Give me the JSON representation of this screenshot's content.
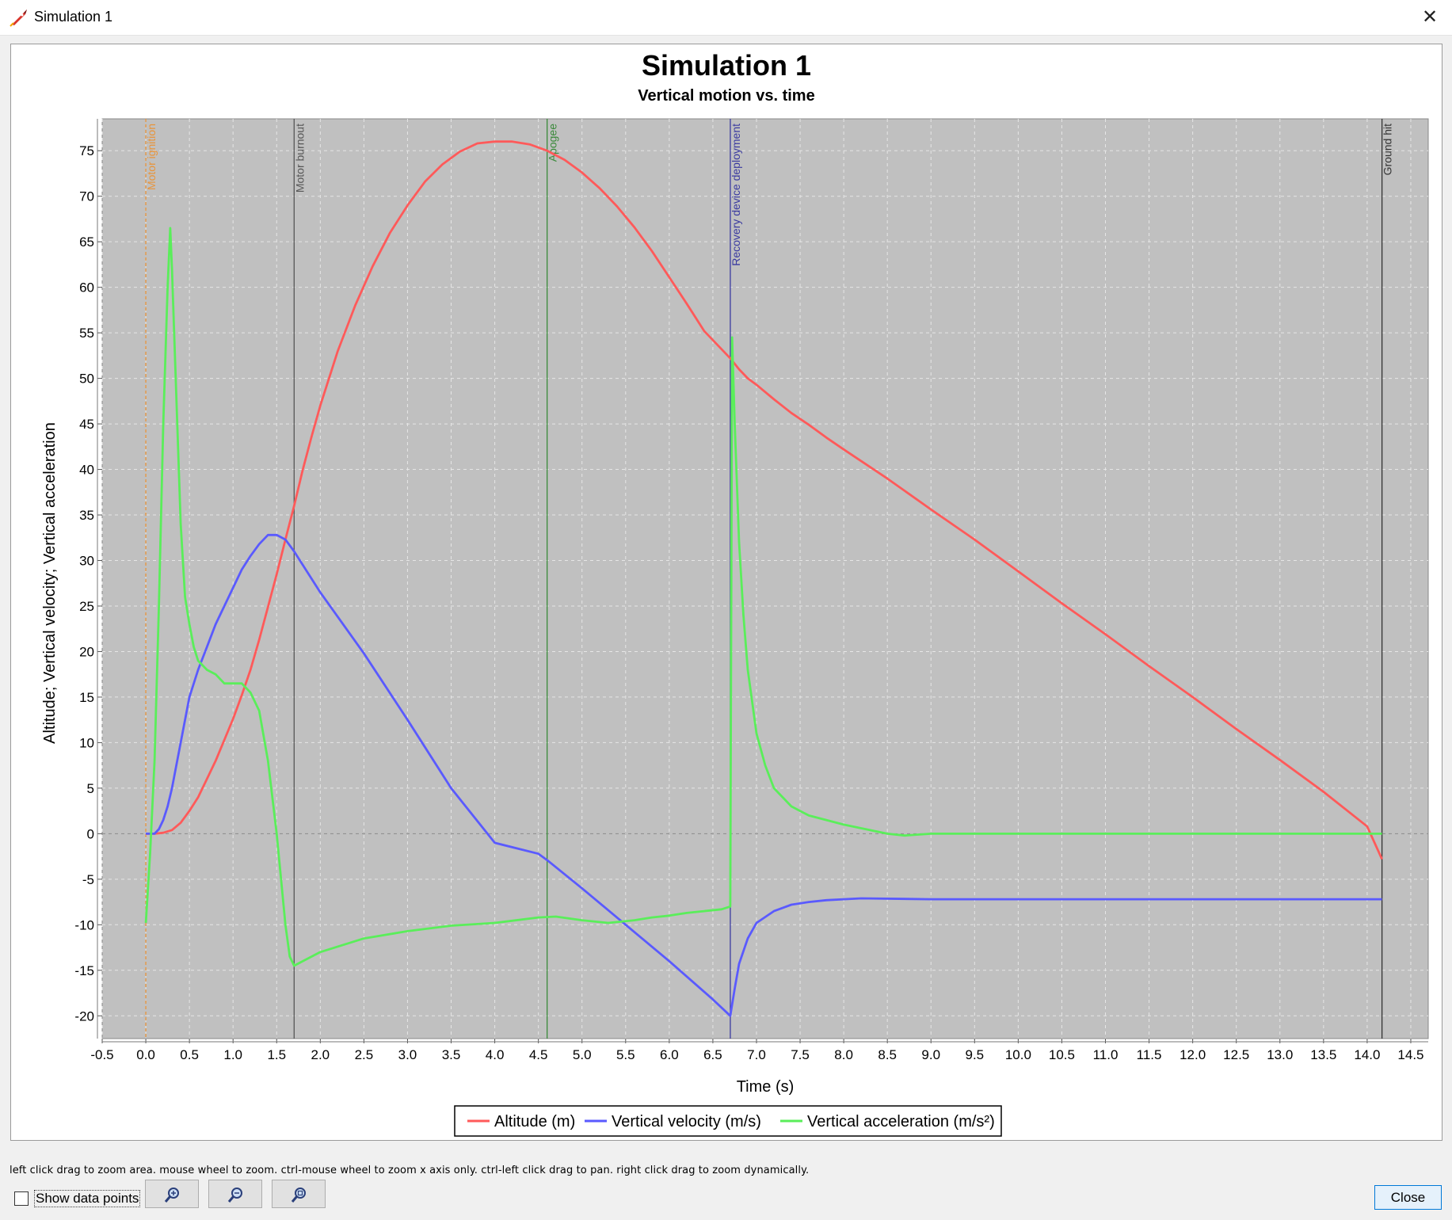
{
  "window": {
    "title": "Simulation 1",
    "close_glyph": "✕",
    "icon": "rocket-icon"
  },
  "chart_data": {
    "type": "line",
    "title": "Simulation 1",
    "subtitle": "Vertical motion vs. time",
    "xlabel": "Time (s)",
    "ylabel": "Altitude; Vertical velocity; Vertical acceleration",
    "xlim": [
      -0.5,
      14.7
    ],
    "ylim": [
      -22.5,
      78.5
    ],
    "xticks": [
      -0.5,
      0.0,
      0.5,
      1.0,
      1.5,
      2.0,
      2.5,
      3.0,
      3.5,
      4.0,
      4.5,
      5.0,
      5.5,
      6.0,
      6.5,
      7.0,
      7.5,
      8.0,
      8.5,
      9.0,
      9.5,
      10.0,
      10.5,
      11.0,
      11.5,
      12.0,
      12.5,
      13.0,
      13.5,
      14.0,
      14.5
    ],
    "yticks": [
      -20,
      -15,
      -10,
      -5,
      0,
      5,
      10,
      15,
      20,
      25,
      30,
      35,
      40,
      45,
      50,
      55,
      60,
      65,
      70,
      75
    ],
    "grid": true,
    "legend_position": "bottom",
    "plot_background": "#c0c0c0",
    "events": [
      {
        "name": "Motor ignition",
        "x": 0.0,
        "color": "#e8943a",
        "dashed": true
      },
      {
        "name": "Motor burnout",
        "x": 1.7,
        "color": "#555555",
        "dashed": false
      },
      {
        "name": "Apogee",
        "x": 4.6,
        "color": "#3a8a3a",
        "dashed": false
      },
      {
        "name": "Recovery device deployment",
        "x": 6.7,
        "color": "#3a3aa0",
        "dashed": false
      },
      {
        "name": "Ground hit",
        "x": 14.17,
        "color": "#333333",
        "dashed": false
      }
    ],
    "series": [
      {
        "name": "Altitude (m)",
        "color": "#ff5a5a",
        "x": [
          0,
          0.1,
          0.2,
          0.3,
          0.4,
          0.5,
          0.6,
          0.7,
          0.8,
          0.9,
          1.0,
          1.1,
          1.2,
          1.3,
          1.4,
          1.5,
          1.6,
          1.7,
          1.8,
          1.9,
          2.0,
          2.2,
          2.4,
          2.6,
          2.8,
          3.0,
          3.2,
          3.4,
          3.6,
          3.8,
          4.0,
          4.2,
          4.4,
          4.6,
          4.8,
          5.0,
          5.2,
          5.4,
          5.6,
          5.8,
          6.0,
          6.2,
          6.4,
          6.6,
          6.7,
          6.8,
          6.9,
          7.0,
          7.2,
          7.4,
          7.6,
          7.8,
          8.0,
          8.5,
          9.0,
          9.5,
          10.0,
          10.5,
          11.0,
          11.5,
          12.0,
          12.5,
          13.0,
          13.5,
          14.0,
          14.17
        ],
        "values": [
          0,
          0,
          0.1,
          0.4,
          1.2,
          2.5,
          4.0,
          6.0,
          8.0,
          10.3,
          12.6,
          15.2,
          18.0,
          21.3,
          24.9,
          28.5,
          32.3,
          36.0,
          40.0,
          43.6,
          47.0,
          53.0,
          58.0,
          62.3,
          66.0,
          69.0,
          71.6,
          73.5,
          74.9,
          75.8,
          76.0,
          76.0,
          75.7,
          75.0,
          74.0,
          72.6,
          70.9,
          68.9,
          66.6,
          64.0,
          61.1,
          58.2,
          55.2,
          53.2,
          52.2,
          51.0,
          50.0,
          49.3,
          47.7,
          46.2,
          44.9,
          43.5,
          42.2,
          39.0,
          35.6,
          32.3,
          28.8,
          25.3,
          21.9,
          18.4,
          15.0,
          11.5,
          8.1,
          4.6,
          0.8,
          -2.8
        ]
      },
      {
        "name": "Vertical velocity (m/s)",
        "color": "#5a5aff",
        "x": [
          0,
          0.1,
          0.15,
          0.2,
          0.25,
          0.3,
          0.35,
          0.4,
          0.45,
          0.5,
          0.6,
          0.7,
          0.8,
          0.9,
          1.0,
          1.1,
          1.2,
          1.3,
          1.4,
          1.5,
          1.6,
          1.7,
          1.8,
          2.0,
          2.5,
          3.0,
          3.5,
          4.0,
          4.5,
          4.6,
          5.0,
          5.5,
          6.0,
          6.5,
          6.7,
          6.75,
          6.8,
          6.9,
          7.0,
          7.2,
          7.4,
          7.6,
          7.8,
          8.0,
          8.2,
          9.0,
          10.0,
          11.0,
          12.0,
          13.0,
          14.0,
          14.17
        ],
        "values": [
          0,
          0,
          0.5,
          1.5,
          3.0,
          5.0,
          7.5,
          10.0,
          12.5,
          15.0,
          18.0,
          20.5,
          23.0,
          25.0,
          27.0,
          29.0,
          30.5,
          31.8,
          32.8,
          32.8,
          32.3,
          31.0,
          29.5,
          26.5,
          19.8,
          12.5,
          5.0,
          -1.0,
          -2.2,
          -2.9,
          -6.0,
          -10.0,
          -14.0,
          -18.2,
          -20.0,
          -17.0,
          -14.3,
          -11.5,
          -9.8,
          -8.5,
          -7.8,
          -7.5,
          -7.3,
          -7.2,
          -7.1,
          -7.2,
          -7.2,
          -7.2,
          -7.2,
          -7.2,
          -7.2,
          -7.2
        ]
      },
      {
        "name": "Vertical acceleration (m/s²)",
        "color": "#5aee5a",
        "x": [
          0,
          0.05,
          0.1,
          0.15,
          0.2,
          0.25,
          0.28,
          0.3,
          0.35,
          0.4,
          0.45,
          0.5,
          0.55,
          0.6,
          0.7,
          0.8,
          0.9,
          1.0,
          1.1,
          1.2,
          1.3,
          1.4,
          1.45,
          1.5,
          1.55,
          1.6,
          1.65,
          1.7,
          1.8,
          2.0,
          2.5,
          3.0,
          3.5,
          4.0,
          4.5,
          4.7,
          5.0,
          5.3,
          5.6,
          5.8,
          6.0,
          6.2,
          6.4,
          6.6,
          6.7,
          6.72,
          6.75,
          6.8,
          6.85,
          6.9,
          7.0,
          7.1,
          7.2,
          7.4,
          7.6,
          8.0,
          8.5,
          8.7,
          9.0,
          10.0,
          12.0,
          14.17
        ],
        "values": [
          -9.8,
          -2.0,
          8.0,
          25.0,
          45.0,
          60.0,
          66.5,
          62.0,
          48.0,
          34.0,
          26.0,
          23.0,
          20.5,
          19.0,
          18.0,
          17.5,
          16.5,
          16.5,
          16.5,
          15.5,
          13.5,
          8.0,
          4.0,
          0.0,
          -5.0,
          -10.0,
          -13.5,
          -14.5,
          -14.0,
          -13.0,
          -11.5,
          -10.7,
          -10.1,
          -9.8,
          -9.2,
          -9.1,
          -9.5,
          -9.8,
          -9.5,
          -9.2,
          -9.0,
          -8.7,
          -8.5,
          -8.3,
          -8.0,
          54.5,
          45.0,
          32.0,
          24.0,
          18.0,
          11.0,
          7.5,
          5.0,
          3.0,
          2.0,
          1.0,
          0.0,
          -0.2,
          0.0,
          0.0,
          0.0,
          0.0
        ]
      }
    ]
  },
  "controls": {
    "hint_text": "left click drag to zoom area. mouse wheel to zoom. ctrl-mouse wheel to zoom x axis only. ctrl-left click drag to pan.  right click drag to zoom dynamically.",
    "show_points_label": "Show data points",
    "show_points_checked": false,
    "zoom_buttons": [
      "zoom-in-icon",
      "zoom-out-icon",
      "zoom-fit-icon"
    ],
    "close_label": "Close"
  }
}
